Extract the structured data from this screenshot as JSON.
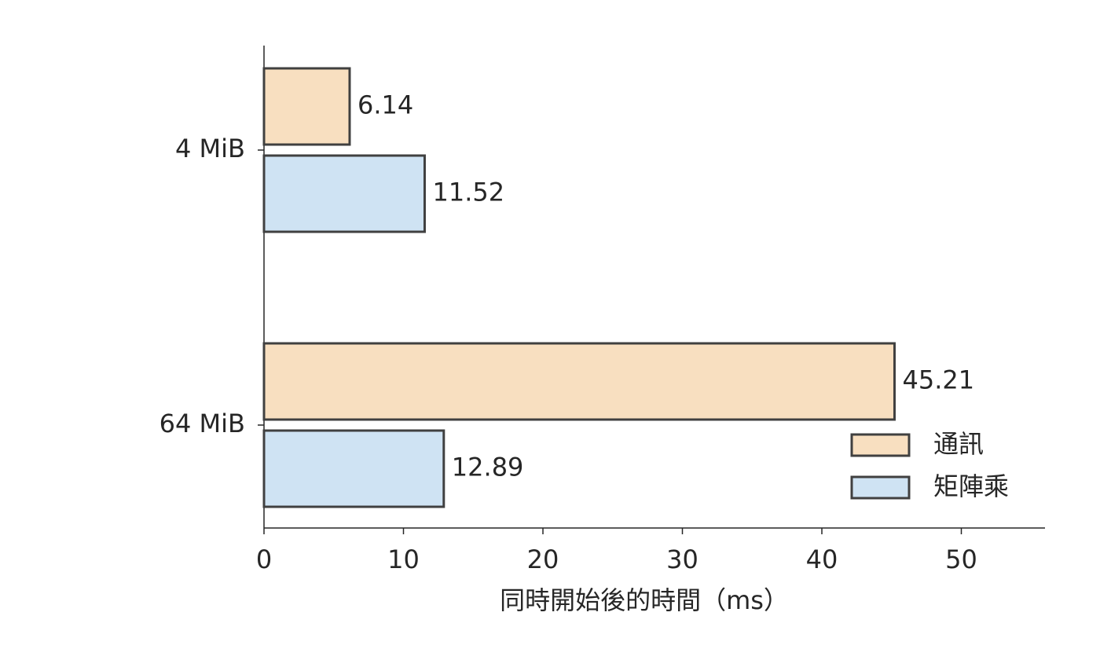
{
  "chart_data": {
    "type": "barh",
    "x_label": "同時開始後的時間（ms）",
    "categories": [
      "4 MiB",
      "64 MiB"
    ],
    "series": [
      {
        "name": "通訊",
        "color": "#f8dfc0",
        "values": [
          6.14,
          45.21
        ]
      },
      {
        "name": "矩陣乘",
        "color": "#cfe3f3",
        "values": [
          11.52,
          12.89
        ]
      }
    ],
    "xlim": [
      0,
      56
    ],
    "xticks": [
      0,
      10,
      20,
      30,
      40,
      50
    ],
    "legend": "lower right"
  }
}
